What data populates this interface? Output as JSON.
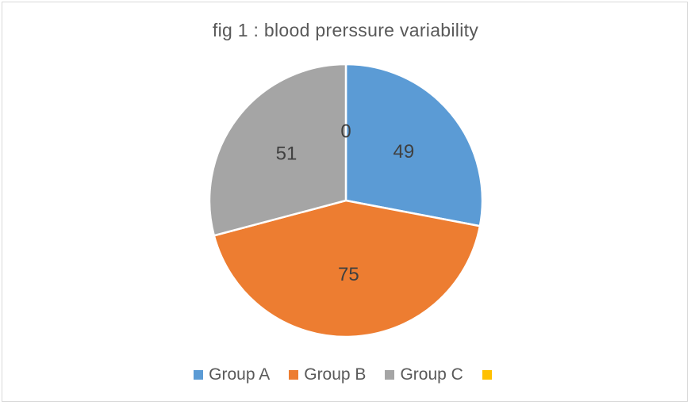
{
  "chart_data": {
    "type": "pie",
    "title": "fig 1 : blood prerssure variability",
    "categories": [
      "Group A",
      "Group B",
      "Group C",
      ""
    ],
    "values": [
      49,
      75,
      51,
      0
    ],
    "data_labels": [
      "49",
      "75",
      "51",
      "0"
    ],
    "colors": [
      "#5b9bd5",
      "#ed7d31",
      "#a5a5a5",
      "#ffc000"
    ],
    "start_angle_deg": 0,
    "direction": "clockwise",
    "legend_position": "bottom"
  }
}
